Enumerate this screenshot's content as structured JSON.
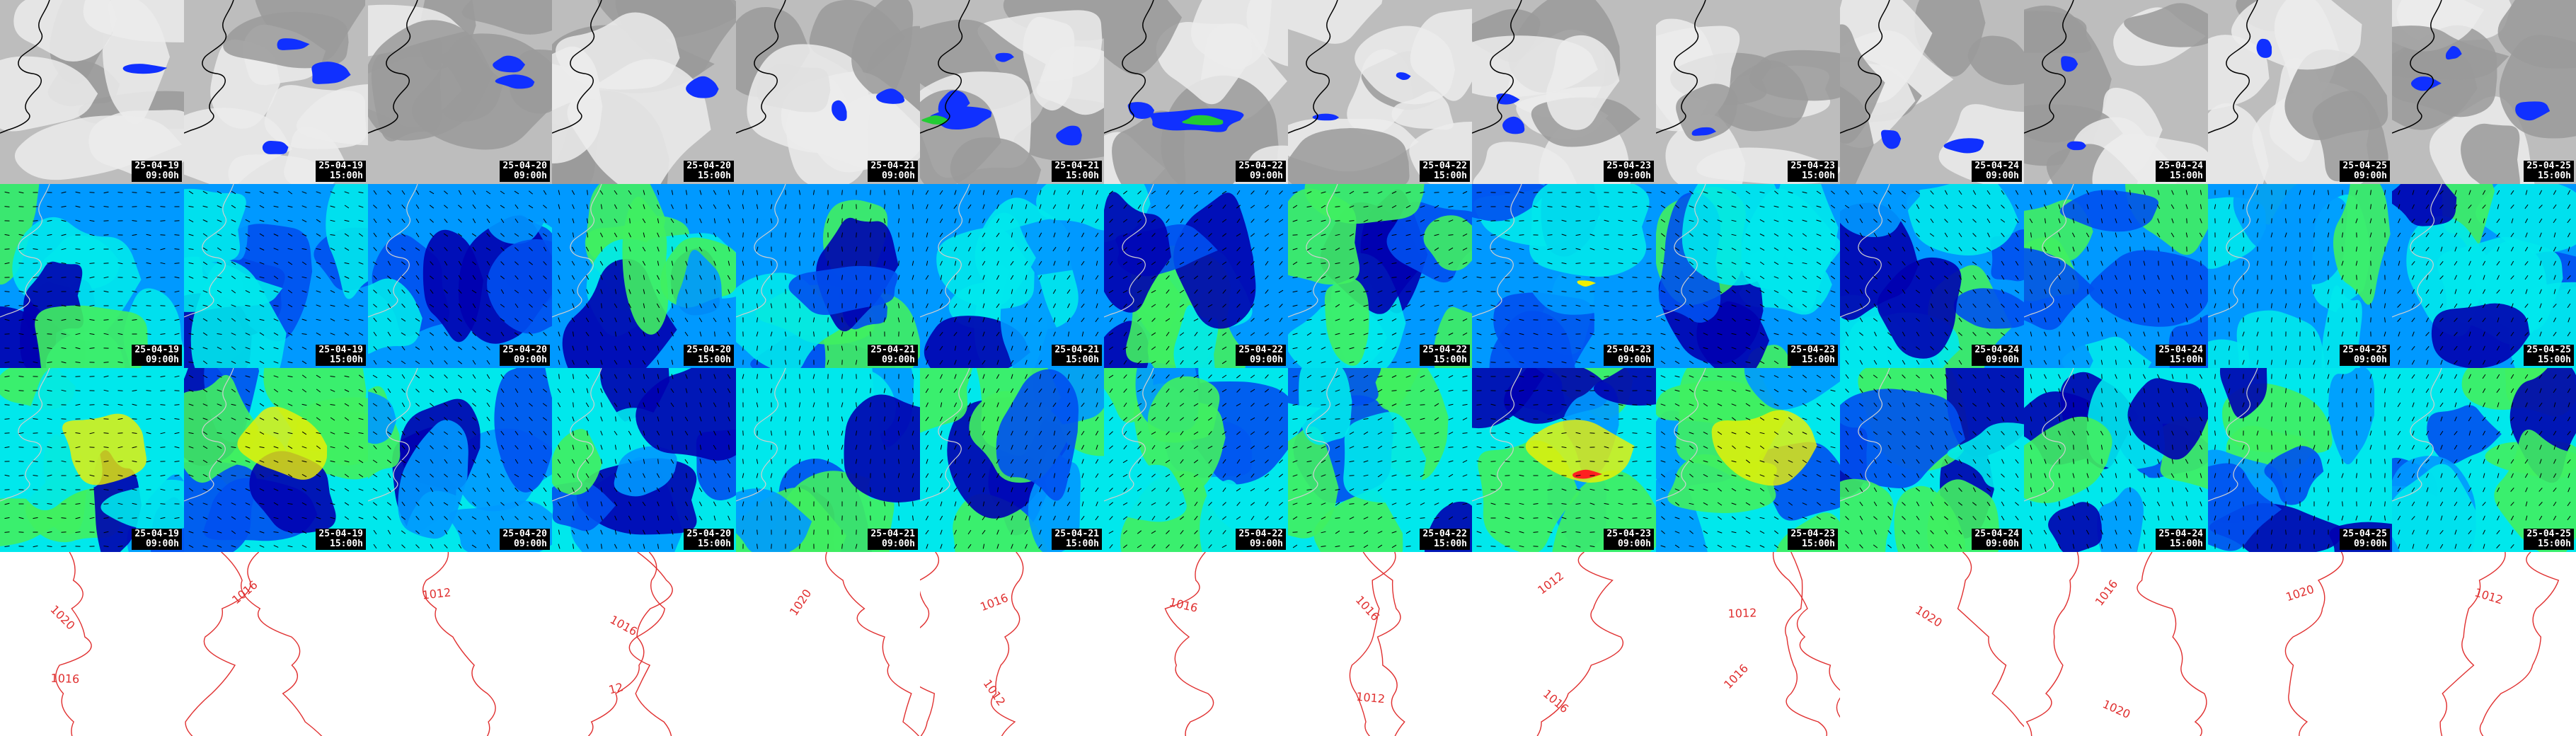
{
  "title": "",
  "columns": [
    {
      "date": "25-04-19",
      "time": "09:00h"
    },
    {
      "date": "25-04-19",
      "time": "15:00h"
    },
    {
      "date": "25-04-20",
      "time": "09:00h"
    },
    {
      "date": "25-04-20",
      "time": "15:00h"
    },
    {
      "date": "25-04-21",
      "time": "09:00h"
    },
    {
      "date": "25-04-21",
      "time": "15:00h"
    },
    {
      "date": "25-04-22",
      "time": "09:00h"
    },
    {
      "date": "25-04-22",
      "time": "15:00h"
    },
    {
      "date": "25-04-23",
      "time": "09:00h"
    },
    {
      "date": "25-04-23",
      "time": "15:00h"
    },
    {
      "date": "25-04-24",
      "time": "09:00h"
    },
    {
      "date": "25-04-24",
      "time": "15:00h"
    },
    {
      "date": "25-04-25",
      "time": "09:00h"
    },
    {
      "date": "25-04-25",
      "time": "15:00h"
    }
  ],
  "rows": [
    {
      "name": "cloud-precipitation",
      "show_time_label": true
    },
    {
      "name": "wind-surface",
      "show_time_label": true
    },
    {
      "name": "wind-gust",
      "show_time_label": true
    },
    {
      "name": "pressure-isobars",
      "show_time_label": false
    }
  ],
  "isobar_labels": [
    [
      "1020",
      "1016"
    ],
    [
      "1016"
    ],
    [
      "1012"
    ],
    [
      "1016",
      "12"
    ],
    [
      "1020"
    ],
    [
      "1016",
      "1012"
    ],
    [
      "1016"
    ],
    [
      "1016",
      "1012"
    ],
    [
      "1012",
      "1016"
    ],
    [
      "1012",
      "1016"
    ],
    [
      "1020"
    ],
    [
      "1016",
      "1020"
    ],
    [
      "1020"
    ],
    [
      "1012"
    ]
  ],
  "colors": {
    "cloud_light": "#ececec",
    "cloud_mid": "#bdbdbd",
    "cloud_dark": "#9a9a9a",
    "precip_blue": "#1030ff",
    "precip_green": "#22cc33",
    "wind_dark": "#0000b0",
    "wind_blue": "#0050f0",
    "wind_light": "#0099ff",
    "wind_cyan": "#00e8ec",
    "wind_green": "#40f060",
    "wind_yellow": "#f0f000",
    "wind_red": "#ff2020",
    "isobar": "#e03030",
    "coast": "#000000"
  }
}
